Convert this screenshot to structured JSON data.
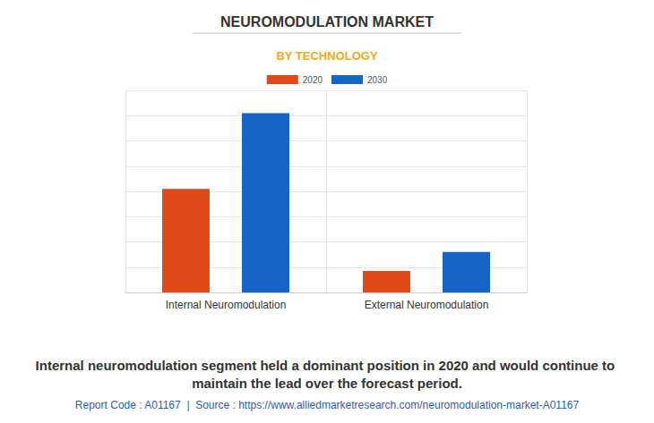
{
  "chart_data": {
    "type": "bar",
    "title": "NEUROMODULATION MARKET",
    "subtitle": "BY TECHNOLOGY",
    "categories": [
      "Internal Neuromodulation",
      "External Neuromodulation"
    ],
    "series": [
      {
        "name": "2020",
        "color": "#e04a1b",
        "values": [
          4.1,
          0.85
        ]
      },
      {
        "name": "2030",
        "color": "#1565c4",
        "values": [
          7.1,
          1.6
        ]
      }
    ],
    "ylim": [
      0,
      8
    ],
    "yticks": [
      0,
      1,
      2,
      3,
      4,
      5,
      6,
      7,
      8
    ],
    "grid": true,
    "legend": "top",
    "tick_labels": "x",
    "annotations": [
      "Internal neuromodulation segment held a dominant position in 2020 and would continue to maintain the lead over the forecast period.",
      "Report Code : A01167  |  Source : https://www.alliedmarketresearch.com/neuromodulation-market-A01167"
    ]
  }
}
